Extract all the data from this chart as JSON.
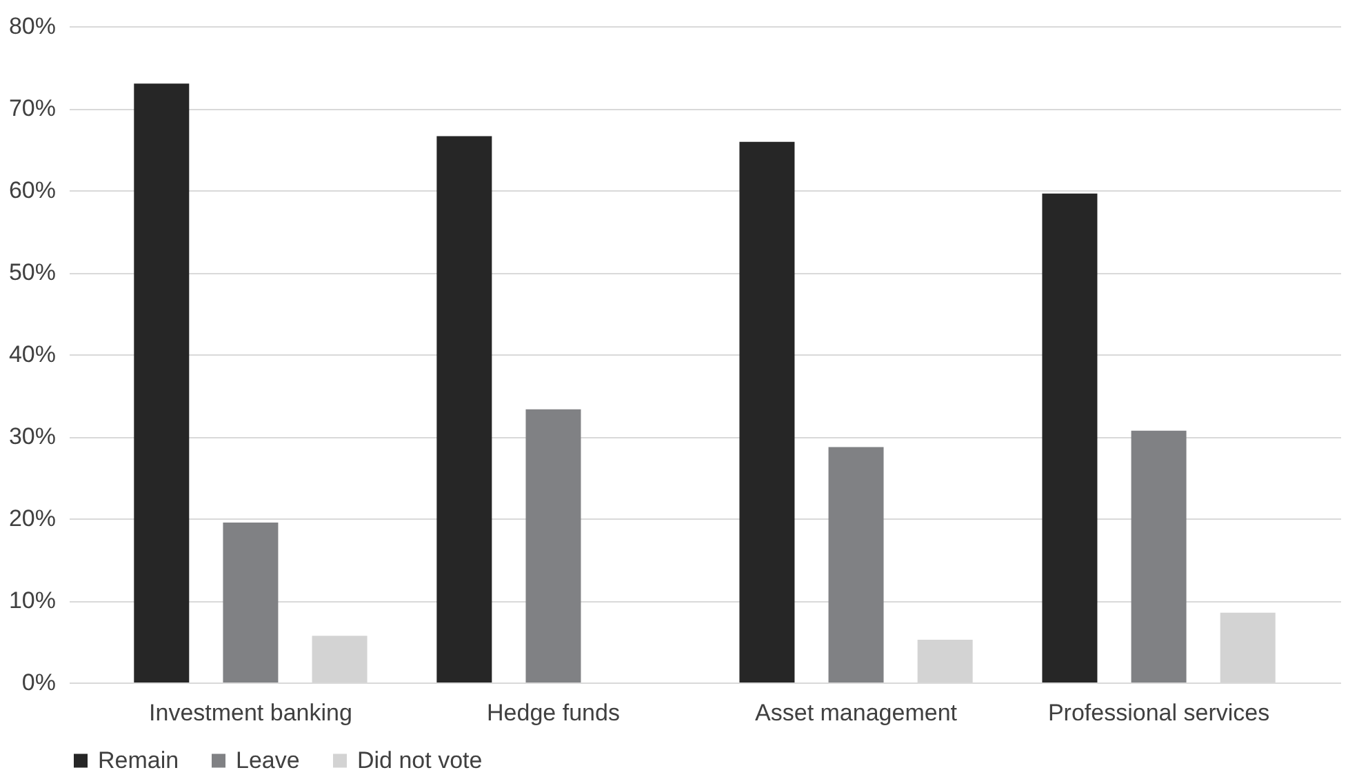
{
  "chart_data": {
    "type": "bar",
    "categories": [
      "Investment banking",
      "Hedge funds",
      "Asset management",
      "Professional services"
    ],
    "series": [
      {
        "name": "Remain",
        "color": "#262626",
        "values": [
          73.0,
          66.6,
          65.9,
          59.6
        ]
      },
      {
        "name": "Leave",
        "color": "#808184",
        "values": [
          19.5,
          33.3,
          28.7,
          30.7
        ]
      },
      {
        "name": "Did not vote",
        "color": "#d3d3d3",
        "values": [
          5.7,
          null,
          5.2,
          8.5
        ]
      }
    ],
    "ylim": [
      0,
      80
    ],
    "yticks": [
      {
        "value": 0,
        "label": "0%"
      },
      {
        "value": 10,
        "label": "10%"
      },
      {
        "value": 20,
        "label": "20%"
      },
      {
        "value": 30,
        "label": "30%"
      },
      {
        "value": 40,
        "label": "40%"
      },
      {
        "value": 50,
        "label": "50%"
      },
      {
        "value": 60,
        "label": "60%"
      },
      {
        "value": 70,
        "label": "70%"
      },
      {
        "value": 80,
        "label": "80%"
      }
    ],
    "grid": "y",
    "legend": "bottom"
  }
}
